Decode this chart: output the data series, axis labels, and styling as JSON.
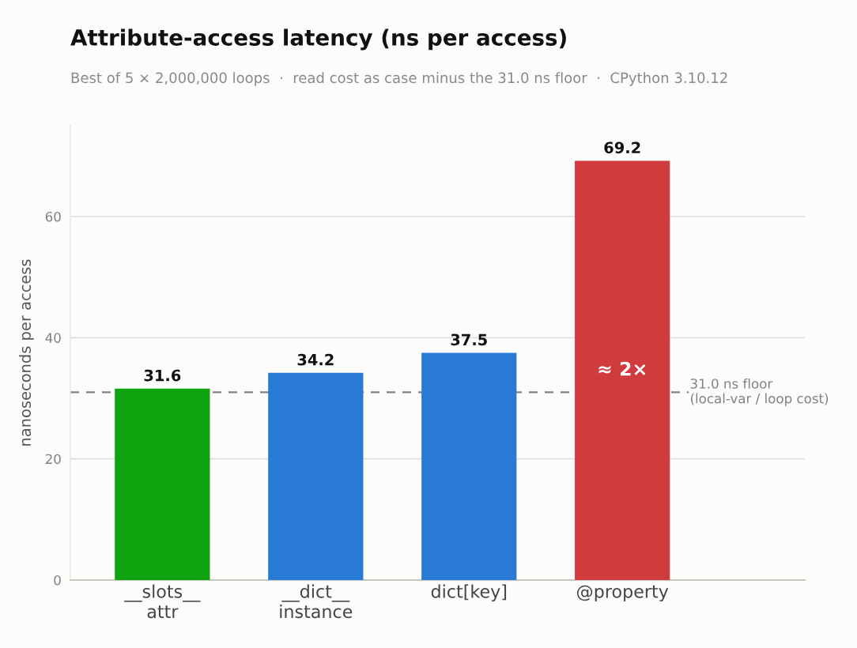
{
  "chart_data": {
    "type": "bar",
    "title": "Attribute-access latency (ns per access)",
    "subtitle": "Best of 5 × 2,000,000 loops  ·  read cost as case minus the 31.0 ns floor  ·  CPython 3.10.12",
    "ylabel": "nanoseconds per access",
    "categories": [
      "__slots__\nattr",
      "__dict__\ninstance",
      "dict[key]",
      "@property"
    ],
    "values": [
      31.6,
      34.2,
      37.5,
      69.2
    ],
    "colors": [
      "#0fa30f",
      "#2979d6",
      "#2979d6",
      "#d03b3d"
    ],
    "data_labels": true,
    "ylim": [
      0,
      75
    ],
    "yticks": [
      0,
      20,
      40,
      60
    ],
    "grid": "y",
    "ref_lines": [
      {
        "axis": "y",
        "value": 31.0,
        "label": "31.0 ns floor\n(local-var / loop cost)",
        "color": "#808080",
        "line_style": "dashed"
      }
    ],
    "annotations": [
      "≈ 2×"
    ]
  }
}
